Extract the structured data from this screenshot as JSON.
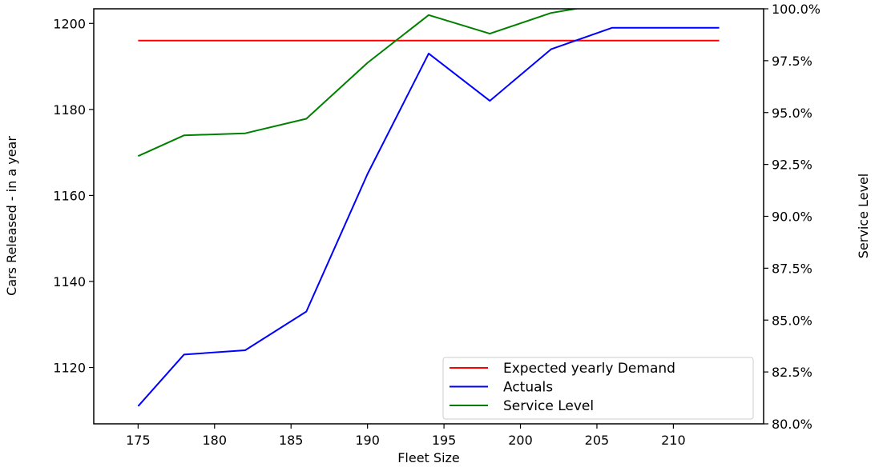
{
  "chart_data": {
    "type": "line",
    "title": "",
    "xlabel": "Fleet Size",
    "ylabel_left": "Cars Released - in a year",
    "ylabel_right": "Service Level",
    "x": [
      175,
      178,
      182,
      186,
      190,
      194,
      198,
      202,
      206,
      213
    ],
    "x_ticks": [
      175,
      180,
      185,
      190,
      195,
      200,
      205,
      210
    ],
    "xlim": [
      172.1,
      215.9
    ],
    "ylim_left": [
      1106.9,
      1203.4
    ],
    "ylim_right": [
      80.0,
      100.0
    ],
    "y_ticks_left": [
      1120,
      1140,
      1160,
      1180,
      1200
    ],
    "y_ticks_right": [
      80.0,
      82.5,
      85.0,
      87.5,
      90.0,
      92.5,
      95.0,
      97.5,
      100.0
    ],
    "y_tick_labels_right": [
      "80.0%",
      "82.5%",
      "85.0%",
      "87.5%",
      "90.0%",
      "92.5%",
      "95.0%",
      "97.5%",
      "100.0%"
    ],
    "grid": false,
    "legend_position": "bottom-right",
    "series": [
      {
        "name": "Expected yearly Demand",
        "axis": "left",
        "color": "#ff0000",
        "values": [
          1196,
          1196,
          1196,
          1196,
          1196,
          1196,
          1196,
          1196,
          1196,
          1196
        ]
      },
      {
        "name": "Actuals",
        "axis": "left",
        "color": "#0000ff",
        "values": [
          1111,
          1123,
          1124,
          1133,
          1165,
          1193,
          1182,
          1194,
          1199,
          1199
        ]
      },
      {
        "name": "Service Level",
        "axis": "right",
        "color": "#008000",
        "values": [
          92.9,
          93.9,
          94.0,
          94.7,
          97.4,
          99.7,
          98.8,
          99.8,
          100.3,
          100.3
        ]
      }
    ]
  }
}
